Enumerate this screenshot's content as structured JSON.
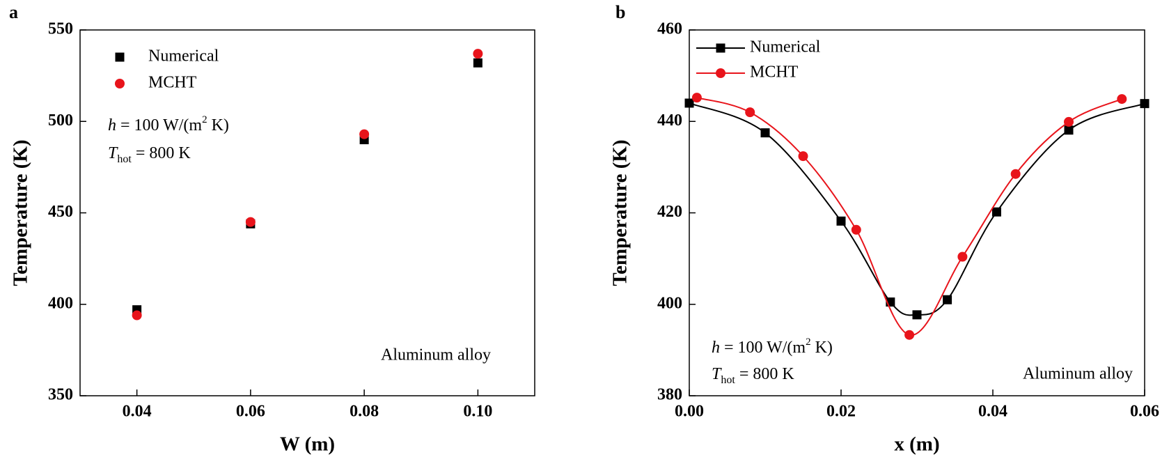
{
  "chart_data": [
    {
      "type": "scatter",
      "panel_label": "a",
      "x_label": "W (m)",
      "y_label": "Temperature (K)",
      "x": [
        0.04,
        0.06,
        0.08,
        {
          "value": 0.1,
          "label": "0.10"
        }
      ],
      "series": [
        {
          "name": "Numerical",
          "color": "#000000",
          "marker": "square",
          "values": [
            397,
            444,
            490,
            532
          ]
        },
        {
          "name": "MCHT",
          "color": "#e8141b",
          "marker": "circle",
          "values": [
            394,
            445,
            493,
            537
          ]
        }
      ],
      "xlim": [
        0.03,
        0.11
      ],
      "xticks": [
        0.04,
        0.06,
        0.08,
        {
          "value": 0.1,
          "label": "0.10"
        }
      ],
      "ylim": [
        350,
        550
      ],
      "yticks": [
        350,
        400,
        450,
        500,
        550
      ],
      "legend": "upper left",
      "annotations": [
        {
          "parts": [
            "h",
            " = 100 W/(m",
            "2",
            " K)"
          ]
        },
        {
          "parts": [
            "T",
            "hot",
            " = 800 K"
          ]
        },
        "Aluminum alloy"
      ]
    },
    {
      "type": "line",
      "panel_label": "b",
      "x_label": "x (m)",
      "y_label": "Temperature (K)",
      "series": [
        {
          "name": "Numerical",
          "color": "#000000",
          "marker": "square",
          "x": [
            0,
            0.01,
            0.02,
            0.0265,
            0.03,
            0.034,
            0.0405,
            0.05,
            0.06
          ],
          "values": [
            444,
            437.5,
            418.2,
            400.5,
            397.7,
            401,
            420.2,
            438.1,
            443.9
          ]
        },
        {
          "name": "MCHT",
          "color": "#e8141b",
          "marker": "circle",
          "x": [
            0.001,
            0.008,
            0.015,
            0.022,
            0.029,
            0.036,
            0.043,
            0.05,
            0.057
          ],
          "values": [
            445.2,
            442,
            432.4,
            416.3,
            393.3,
            410.4,
            428.5,
            439.9,
            444.9
          ]
        }
      ],
      "xlim": [
        0,
        0.06
      ],
      "xticks": [
        {
          "value": 0,
          "label": "0.00"
        },
        0.02,
        0.04,
        0.06
      ],
      "ylim": [
        380,
        460
      ],
      "yticks": [
        380,
        400,
        420,
        440,
        460
      ],
      "legend": "upper left",
      "annotations": [
        {
          "parts": [
            "h",
            " = 100 W/(m",
            "2",
            " K)"
          ]
        },
        {
          "parts": [
            "T",
            "hot",
            " = 800 K"
          ]
        },
        "Aluminum alloy"
      ]
    }
  ]
}
